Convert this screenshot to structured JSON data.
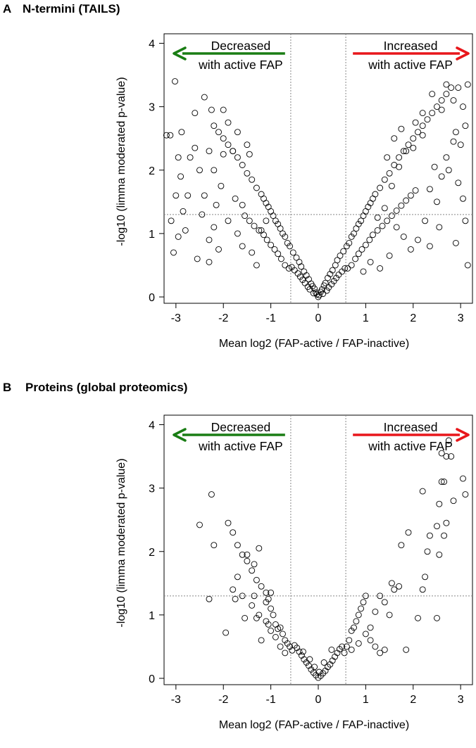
{
  "chart_data": [
    {
      "panel_label": "A",
      "title": "N-termini (TAILS)",
      "type": "scatter",
      "xlabel": "Mean log2 (FAP-active / FAP-inactive)",
      "ylabel": "-log10 (limma moderated p-value)",
      "xlim": [
        -3.25,
        3.25
      ],
      "ylim": [
        -0.1,
        4.15
      ],
      "xticks": [
        "-3",
        "-2",
        "-1",
        "0",
        "1",
        "2",
        "3"
      ],
      "yticks": [
        "0",
        "1",
        "2",
        "3",
        "4"
      ],
      "grid": false,
      "threshold_lines": {
        "x": [
          -0.58,
          0.58
        ],
        "y": 1.3
      },
      "annotations": {
        "left": {
          "line1": "Decreased",
          "line2": "with active FAP",
          "arrow_color": "#1a7d14"
        },
        "right": {
          "line1": "Increased",
          "line2": "with active FAP",
          "arrow_color": "#e8161b"
        }
      },
      "marker": {
        "shape": "open-circle",
        "color": "#000000"
      },
      "points": [
        [
          0,
          0
        ],
        [
          0.02,
          0.03
        ],
        [
          -0.03,
          0.04
        ],
        [
          0.05,
          0.08
        ],
        [
          -0.05,
          0.07
        ],
        [
          0.08,
          0.12
        ],
        [
          -0.08,
          0.13
        ],
        [
          0.1,
          0.05
        ],
        [
          -0.1,
          0.06
        ],
        [
          0.12,
          0.18
        ],
        [
          -0.12,
          0.17
        ],
        [
          0.15,
          0.22
        ],
        [
          -0.15,
          0.21
        ],
        [
          0.18,
          0.1
        ],
        [
          -0.18,
          0.12
        ],
        [
          0.2,
          0.3
        ],
        [
          -0.2,
          0.28
        ],
        [
          0.22,
          0.15
        ],
        [
          -0.22,
          0.16
        ],
        [
          0.25,
          0.36
        ],
        [
          -0.25,
          0.34
        ],
        [
          0.28,
          0.2
        ],
        [
          -0.28,
          0.22
        ],
        [
          0.3,
          0.42
        ],
        [
          -0.3,
          0.4
        ],
        [
          0.33,
          0.25
        ],
        [
          -0.33,
          0.27
        ],
        [
          0.36,
          0.5
        ],
        [
          -0.36,
          0.48
        ],
        [
          0.38,
          0.3
        ],
        [
          -0.38,
          0.32
        ],
        [
          0.4,
          0.58
        ],
        [
          -0.4,
          0.55
        ],
        [
          0.43,
          0.35
        ],
        [
          -0.43,
          0.37
        ],
        [
          0.46,
          0.65
        ],
        [
          -0.46,
          0.62
        ],
        [
          0.5,
          0.4
        ],
        [
          -0.5,
          0.42
        ],
        [
          0.53,
          0.72
        ],
        [
          -0.53,
          0.7
        ],
        [
          0.56,
          0.45
        ],
        [
          -0.56,
          0.47
        ],
        [
          0.6,
          0.8
        ],
        [
          0.65,
          0.85
        ],
        [
          0.7,
          0.95
        ],
        [
          0.75,
          1.0
        ],
        [
          0.8,
          1.08
        ],
        [
          0.85,
          1.15
        ],
        [
          0.9,
          1.2
        ],
        [
          0.95,
          1.28
        ],
        [
          1.0,
          1.35
        ],
        [
          1.05,
          1.42
        ],
        [
          1.1,
          1.48
        ],
        [
          1.15,
          1.55
        ],
        [
          1.2,
          1.62
        ],
        [
          1.3,
          1.72
        ],
        [
          1.4,
          1.85
        ],
        [
          1.5,
          1.95
        ],
        [
          1.6,
          2.08
        ],
        [
          1.7,
          2.2
        ],
        [
          1.8,
          2.3
        ],
        [
          1.9,
          2.4
        ],
        [
          2.0,
          2.5
        ],
        [
          2.1,
          2.6
        ],
        [
          2.2,
          2.7
        ],
        [
          2.3,
          2.8
        ],
        [
          2.4,
          2.9
        ],
        [
          2.5,
          3.0
        ],
        [
          2.6,
          3.1
        ],
        [
          2.7,
          3.2
        ],
        [
          2.8,
          3.3
        ],
        [
          0.62,
          0.45
        ],
        [
          0.7,
          0.5
        ],
        [
          0.78,
          0.6
        ],
        [
          0.85,
          0.68
        ],
        [
          0.92,
          0.75
        ],
        [
          1.0,
          0.82
        ],
        [
          1.08,
          0.9
        ],
        [
          1.15,
          0.98
        ],
        [
          1.25,
          1.05
        ],
        [
          1.35,
          1.12
        ],
        [
          1.45,
          1.2
        ],
        [
          1.55,
          1.28
        ],
        [
          1.65,
          1.36
        ],
        [
          1.75,
          1.44
        ],
        [
          1.85,
          1.52
        ],
        [
          1.95,
          1.6
        ],
        [
          2.05,
          1.68
        ],
        [
          -0.6,
          0.8
        ],
        [
          -0.65,
          0.85
        ],
        [
          -0.7,
          0.95
        ],
        [
          -0.75,
          1.0
        ],
        [
          -0.8,
          1.08
        ],
        [
          -0.85,
          1.15
        ],
        [
          -0.9,
          1.2
        ],
        [
          -0.95,
          1.28
        ],
        [
          -1.0,
          1.35
        ],
        [
          -1.05,
          1.42
        ],
        [
          -1.1,
          1.48
        ],
        [
          -1.15,
          1.55
        ],
        [
          -1.2,
          1.62
        ],
        [
          -1.3,
          1.72
        ],
        [
          -1.4,
          1.85
        ],
        [
          -1.5,
          1.95
        ],
        [
          -1.6,
          2.08
        ],
        [
          -1.7,
          2.2
        ],
        [
          -1.8,
          2.3
        ],
        [
          -1.9,
          2.4
        ],
        [
          -2.0,
          2.5
        ],
        [
          -2.1,
          2.6
        ],
        [
          -2.2,
          2.7
        ],
        [
          -0.62,
          0.45
        ],
        [
          -0.7,
          0.5
        ],
        [
          -0.78,
          0.6
        ],
        [
          -0.85,
          0.68
        ],
        [
          -0.92,
          0.75
        ],
        [
          -1.0,
          0.82
        ],
        [
          -1.08,
          0.9
        ],
        [
          -1.15,
          0.98
        ],
        [
          -1.25,
          1.05
        ],
        [
          -1.35,
          1.12
        ],
        [
          -1.45,
          1.2
        ],
        [
          -1.55,
          1.28
        ],
        [
          -3.02,
          3.4
        ],
        [
          -2.88,
          2.6
        ],
        [
          -3.12,
          2.55
        ],
        [
          -3.2,
          2.55
        ],
        [
          -2.95,
          2.2
        ],
        [
          -2.9,
          1.9
        ],
        [
          -3.0,
          1.6
        ],
        [
          -2.85,
          1.35
        ],
        [
          -3.1,
          1.2
        ],
        [
          -2.95,
          0.95
        ],
        [
          -3.05,
          0.7
        ],
        [
          -2.8,
          1.05
        ],
        [
          -2.6,
          2.35
        ],
        [
          -2.5,
          2.0
        ],
        [
          -2.4,
          1.6
        ],
        [
          -2.45,
          1.3
        ],
        [
          -2.3,
          0.9
        ],
        [
          -2.55,
          0.6
        ],
        [
          -2.2,
          1.1
        ],
        [
          -2.6,
          2.9
        ],
        [
          -2.4,
          3.15
        ],
        [
          -2.25,
          2.95
        ],
        [
          -2.0,
          2.95
        ],
        [
          -1.9,
          2.75
        ],
        [
          -1.7,
          2.6
        ],
        [
          -1.8,
          2.3
        ],
        [
          -2.3,
          2.3
        ],
        [
          -1.9,
          1.2
        ],
        [
          -1.7,
          1.0
        ],
        [
          -1.6,
          0.8
        ],
        [
          -2.1,
          0.75
        ],
        [
          -2.3,
          0.55
        ],
        [
          -1.4,
          0.7
        ],
        [
          -1.3,
          0.5
        ],
        [
          -1.2,
          1.05
        ],
        [
          -1.1,
          1.2
        ],
        [
          -2.7,
          2.2
        ],
        [
          -2.75,
          1.6
        ],
        [
          -2.2,
          2.0
        ],
        [
          -2.05,
          1.75
        ],
        [
          -1.5,
          2.4
        ],
        [
          -1.45,
          2.25
        ],
        [
          -1.6,
          1.45
        ],
        [
          -1.75,
          1.55
        ],
        [
          -2.0,
          2.25
        ],
        [
          -2.15,
          1.45
        ],
        [
          3.15,
          3.35
        ],
        [
          2.95,
          3.3
        ],
        [
          2.7,
          3.35
        ],
        [
          2.85,
          3.1
        ],
        [
          3.05,
          3.0
        ],
        [
          3.1,
          2.7
        ],
        [
          2.9,
          2.6
        ],
        [
          3.0,
          2.4
        ],
        [
          2.85,
          2.45
        ],
        [
          2.7,
          2.2
        ],
        [
          2.75,
          2.0
        ],
        [
          2.6,
          1.9
        ],
        [
          2.95,
          1.8
        ],
        [
          3.05,
          1.55
        ],
        [
          3.1,
          1.2
        ],
        [
          2.5,
          1.5
        ],
        [
          2.35,
          1.7
        ],
        [
          2.25,
          1.2
        ],
        [
          2.1,
          0.9
        ],
        [
          1.95,
          0.75
        ],
        [
          1.8,
          0.95
        ],
        [
          1.65,
          1.1
        ],
        [
          2.9,
          0.85
        ],
        [
          3.15,
          0.5
        ],
        [
          2.45,
          2.05
        ],
        [
          2.2,
          2.55
        ],
        [
          2.0,
          2.35
        ],
        [
          1.85,
          2.3
        ],
        [
          1.7,
          2.05
        ],
        [
          1.55,
          1.75
        ],
        [
          1.4,
          1.4
        ],
        [
          1.25,
          1.25
        ],
        [
          1.1,
          0.55
        ],
        [
          0.95,
          0.4
        ],
        [
          2.6,
          2.95
        ],
        [
          2.4,
          3.2
        ],
        [
          2.2,
          2.9
        ],
        [
          2.05,
          2.75
        ],
        [
          2.55,
          1.1
        ],
        [
          2.35,
          0.8
        ],
        [
          1.5,
          0.65
        ],
        [
          1.3,
          0.45
        ],
        [
          1.75,
          2.65
        ],
        [
          1.6,
          2.5
        ],
        [
          1.45,
          2.2
        ]
      ]
    },
    {
      "panel_label": "B",
      "title": "Proteins (global proteomics)",
      "type": "scatter",
      "xlabel": "Mean log2 (FAP-active / FAP-inactive)",
      "ylabel": "-log10 (limma moderated p-value)",
      "xlim": [
        -3.25,
        3.25
      ],
      "ylim": [
        -0.1,
        4.15
      ],
      "xticks": [
        "-3",
        "-2",
        "-1",
        "0",
        "1",
        "2",
        "3"
      ],
      "yticks": [
        "0",
        "1",
        "2",
        "3",
        "4"
      ],
      "grid": false,
      "threshold_lines": {
        "x": [
          -0.58,
          0.58
        ],
        "y": 1.3
      },
      "annotations": {
        "left": {
          "line1": "Decreased",
          "line2": "with active FAP",
          "arrow_color": "#1a7d14"
        },
        "right": {
          "line1": "Increased",
          "line2": "with active FAP",
          "arrow_color": "#e8161b"
        }
      },
      "marker": {
        "shape": "open-circle",
        "color": "#000000"
      },
      "points": [
        [
          0,
          0.01
        ],
        [
          0.05,
          0.04
        ],
        [
          -0.05,
          0.05
        ],
        [
          0.1,
          0.08
        ],
        [
          -0.1,
          0.09
        ],
        [
          0.15,
          0.12
        ],
        [
          -0.15,
          0.14
        ],
        [
          0.2,
          0.18
        ],
        [
          -0.2,
          0.2
        ],
        [
          0.25,
          0.22
        ],
        [
          -0.25,
          0.25
        ],
        [
          0.3,
          0.28
        ],
        [
          -0.3,
          0.3
        ],
        [
          0.35,
          0.34
        ],
        [
          -0.35,
          0.36
        ],
        [
          0.4,
          0.4
        ],
        [
          -0.4,
          0.42
        ],
        [
          0.45,
          0.46
        ],
        [
          -0.45,
          0.48
        ],
        [
          0.5,
          0.5
        ],
        [
          -0.5,
          0.52
        ],
        [
          0.55,
          0.4
        ],
        [
          -0.55,
          0.44
        ],
        [
          0.02,
          0.1
        ],
        [
          -0.08,
          0.18
        ],
        [
          0.12,
          0.25
        ],
        [
          -0.18,
          0.3
        ],
        [
          0.28,
          0.45
        ],
        [
          -0.32,
          0.42
        ],
        [
          -0.6,
          0.5
        ],
        [
          -0.65,
          0.55
        ],
        [
          -0.7,
          0.6
        ],
        [
          -0.75,
          0.7
        ],
        [
          -0.8,
          0.8
        ],
        [
          -0.85,
          0.78
        ],
        [
          -0.9,
          0.85
        ],
        [
          -0.95,
          1.0
        ],
        [
          -1.0,
          1.1
        ],
        [
          -1.05,
          1.25
        ],
        [
          -1.1,
          1.35
        ],
        [
          -1.2,
          1.45
        ],
        [
          -1.3,
          1.55
        ],
        [
          -1.4,
          1.7
        ],
        [
          -1.5,
          1.85
        ],
        [
          -1.6,
          1.95
        ],
        [
          -1.7,
          2.1
        ],
        [
          -1.8,
          2.3
        ],
        [
          -1.9,
          2.45
        ],
        [
          -0.7,
          0.4
        ],
        [
          -0.8,
          0.5
        ],
        [
          -0.9,
          0.65
        ],
        [
          -1.0,
          0.75
        ],
        [
          -1.1,
          0.9
        ],
        [
          -1.25,
          1.0
        ],
        [
          -1.4,
          1.15
        ],
        [
          -1.6,
          1.3
        ],
        [
          -1.8,
          1.4
        ],
        [
          -2.25,
          2.9
        ],
        [
          -2.5,
          2.42
        ],
        [
          -2.2,
          2.1
        ],
        [
          -2.3,
          1.25
        ],
        [
          -1.95,
          0.72
        ],
        [
          -1.75,
          1.25
        ],
        [
          -1.35,
          1.3
        ],
        [
          -1.25,
          2.05
        ],
        [
          -1.35,
          1.8
        ],
        [
          -1.5,
          1.95
        ],
        [
          -1.7,
          1.6
        ],
        [
          -1.05,
          0.85
        ],
        [
          -1.2,
          0.6
        ],
        [
          -1.0,
          1.35
        ],
        [
          -1.1,
          1.2
        ],
        [
          -1.3,
          0.95
        ],
        [
          -1.55,
          0.95
        ],
        [
          0.6,
          0.5
        ],
        [
          0.65,
          0.6
        ],
        [
          0.7,
          0.75
        ],
        [
          0.75,
          0.8
        ],
        [
          0.8,
          0.9
        ],
        [
          0.85,
          1.0
        ],
        [
          0.9,
          1.1
        ],
        [
          0.95,
          1.2
        ],
        [
          1.0,
          1.3
        ],
        [
          1.1,
          0.6
        ],
        [
          1.2,
          0.5
        ],
        [
          1.3,
          0.4
        ],
        [
          1.4,
          0.45
        ],
        [
          0.7,
          0.45
        ],
        [
          0.85,
          0.55
        ],
        [
          1.0,
          0.7
        ],
        [
          1.1,
          0.8
        ],
        [
          1.2,
          1.05
        ],
        [
          1.5,
          1.0
        ],
        [
          1.6,
          1.4
        ],
        [
          1.7,
          1.45
        ],
        [
          1.85,
          0.45
        ],
        [
          2.1,
          0.95
        ],
        [
          2.2,
          1.4
        ],
        [
          2.25,
          1.6
        ],
        [
          2.3,
          2.0
        ],
        [
          2.35,
          2.25
        ],
        [
          2.2,
          2.95
        ],
        [
          2.5,
          2.4
        ],
        [
          2.55,
          2.75
        ],
        [
          2.6,
          3.1
        ],
        [
          2.65,
          3.1
        ],
        [
          2.7,
          3.5
        ],
        [
          2.6,
          3.55
        ],
        [
          2.75,
          3.75
        ],
        [
          2.8,
          3.5
        ],
        [
          2.85,
          2.8
        ],
        [
          2.7,
          2.45
        ],
        [
          2.65,
          2.25
        ],
        [
          2.55,
          1.95
        ],
        [
          3.05,
          3.15
        ],
        [
          3.1,
          2.9
        ],
        [
          2.5,
          0.95
        ],
        [
          1.4,
          1.2
        ],
        [
          1.55,
          1.5
        ],
        [
          1.75,
          2.1
        ],
        [
          1.9,
          2.3
        ],
        [
          1.3,
          1.3
        ]
      ]
    }
  ]
}
